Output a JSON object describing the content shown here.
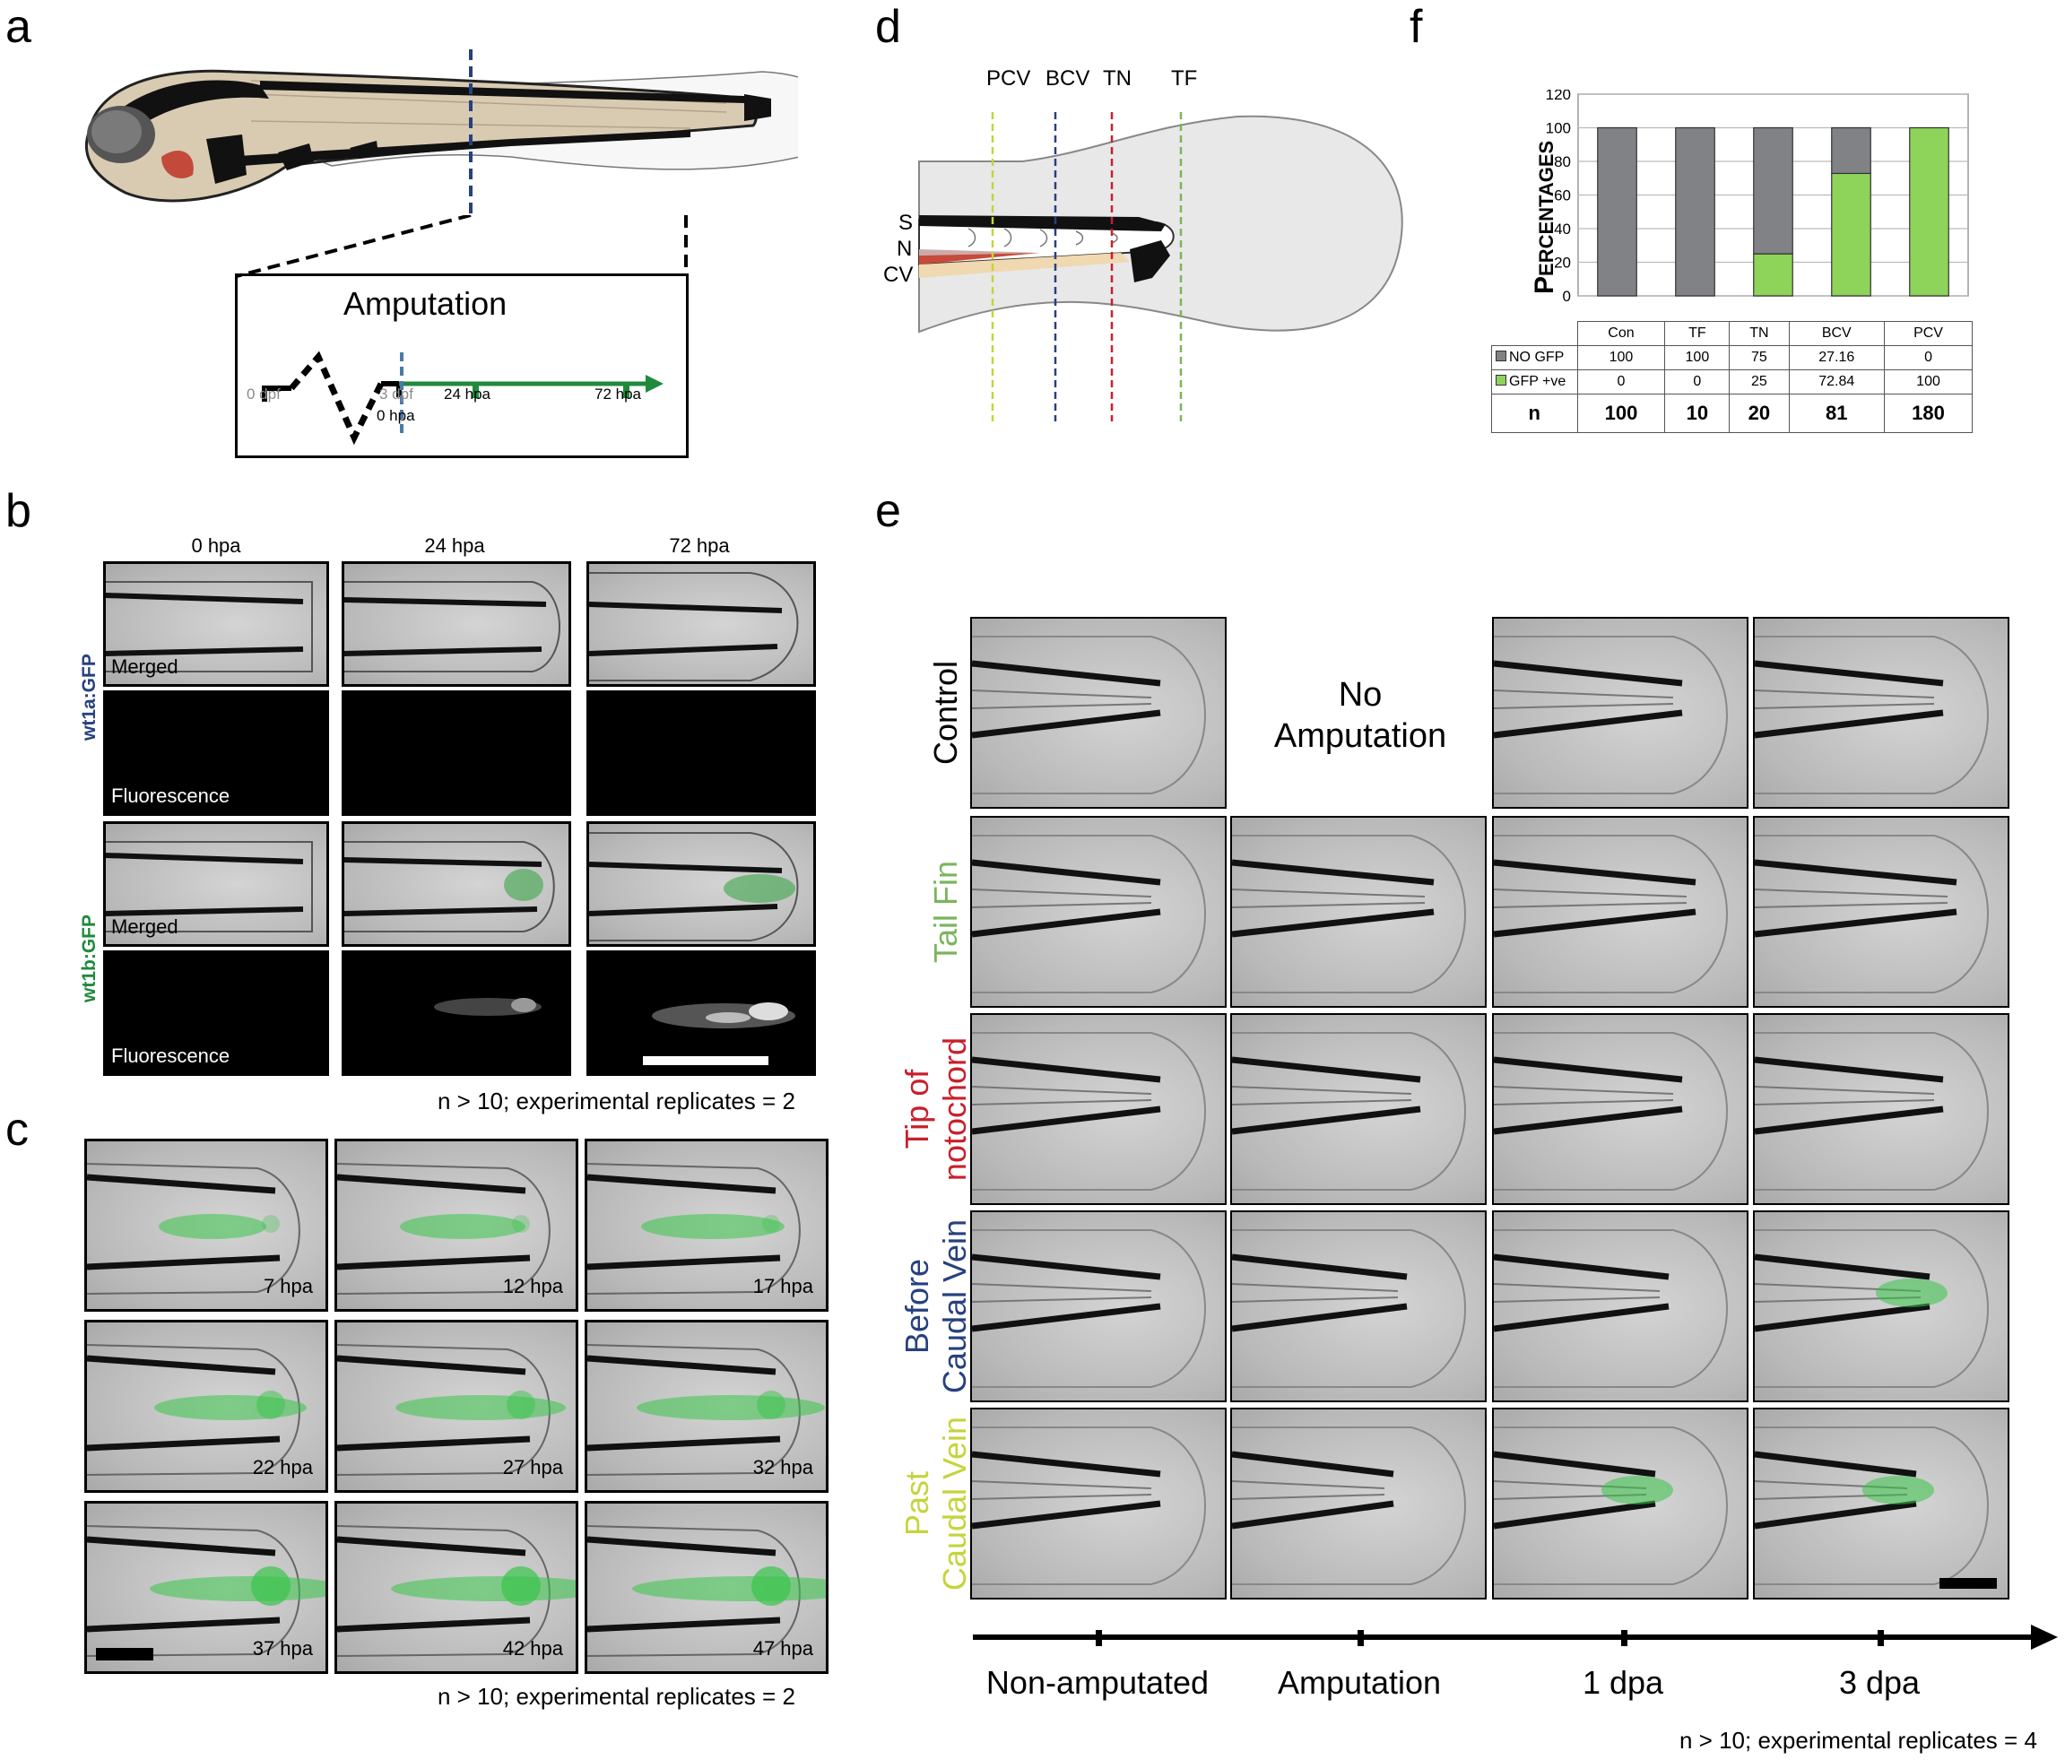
{
  "panel_labels": {
    "a": "a",
    "b": "b",
    "c": "c",
    "d": "d",
    "e": "e",
    "f": "f"
  },
  "panel_a": {
    "amputation_title": "Amputation",
    "timeline": {
      "t0": "0 dpf",
      "t3": "3 dpf",
      "t0hpa": "0 hpa",
      "t24": "24 hpa",
      "t72": "72 hpa"
    }
  },
  "panel_b": {
    "col_headers": [
      "0 hpa",
      "24 hpa",
      "72 hpa"
    ],
    "row1_label": "wt1a:GFP",
    "row2_label": "wt1b:GFP",
    "merged": "Merged",
    "fluorescence": "Fluorescence",
    "footer": "n > 10; experimental replicates = 2"
  },
  "panel_c": {
    "times": [
      "7 hpa",
      "12 hpa",
      "17 hpa",
      "22 hpa",
      "27 hpa",
      "32 hpa",
      "37 hpa",
      "42 hpa",
      "47 hpa"
    ],
    "footer": "n > 10; experimental replicates = 2"
  },
  "panel_d": {
    "lines": [
      "PCV",
      "BCV",
      "TN",
      "TF"
    ],
    "structures": [
      "S",
      "N",
      "CV"
    ]
  },
  "panel_e": {
    "rows": [
      {
        "l1": "Control",
        "l2": ""
      },
      {
        "l1": "Tail Fin",
        "l2": ""
      },
      {
        "l1": "Tip of",
        "l2": "notochord"
      },
      {
        "l1": "Before",
        "l2": "Caudal Vein"
      },
      {
        "l1": "Past",
        "l2": "Caudal Vein"
      }
    ],
    "no_amp_l1": "No",
    "no_amp_l2": "Amputation",
    "axis": [
      "Non-amputated",
      "Amputation",
      "1 dpa",
      "3 dpa"
    ],
    "footer": "n > 10; experimental replicates = 4",
    "colors": {
      "control": "#000000",
      "tail_fin": "#7ab55c",
      "tip": "#c8202c",
      "before": "#27417e",
      "past": "#c5d43c"
    }
  },
  "panel_f": {
    "ylabel_big_p": "P",
    "ylabel_rest": "ERCENTAGES",
    "legend": {
      "no_gfp": "NO GFP",
      "gfp": "GFP +ve",
      "n": "n"
    },
    "colors": {
      "no_gfp": "#808285",
      "gfp": "#8ed35a"
    }
  },
  "chart_data": {
    "type": "bar",
    "stacked": true,
    "categories": [
      "Con",
      "TF",
      "TN",
      "BCV",
      "PCV"
    ],
    "series": [
      {
        "name": "GFP +ve",
        "values": [
          0,
          0,
          25,
          72.84,
          100
        ]
      },
      {
        "name": "NO GFP",
        "values": [
          100,
          100,
          75,
          27.16,
          0
        ]
      }
    ],
    "table_text": {
      "no_gfp": [
        "100",
        "100",
        "75",
        "27.16",
        "0"
      ],
      "gfp": [
        "0",
        "0",
        "25",
        "72.84",
        "100"
      ],
      "n": [
        "100",
        "10",
        "20",
        "81",
        "180"
      ]
    },
    "ylabel": "PERCENTAGES",
    "yticks": [
      "0",
      "20",
      "40",
      "60",
      "80",
      "100",
      "120"
    ],
    "ylim": [
      0,
      120
    ],
    "grid": true
  }
}
